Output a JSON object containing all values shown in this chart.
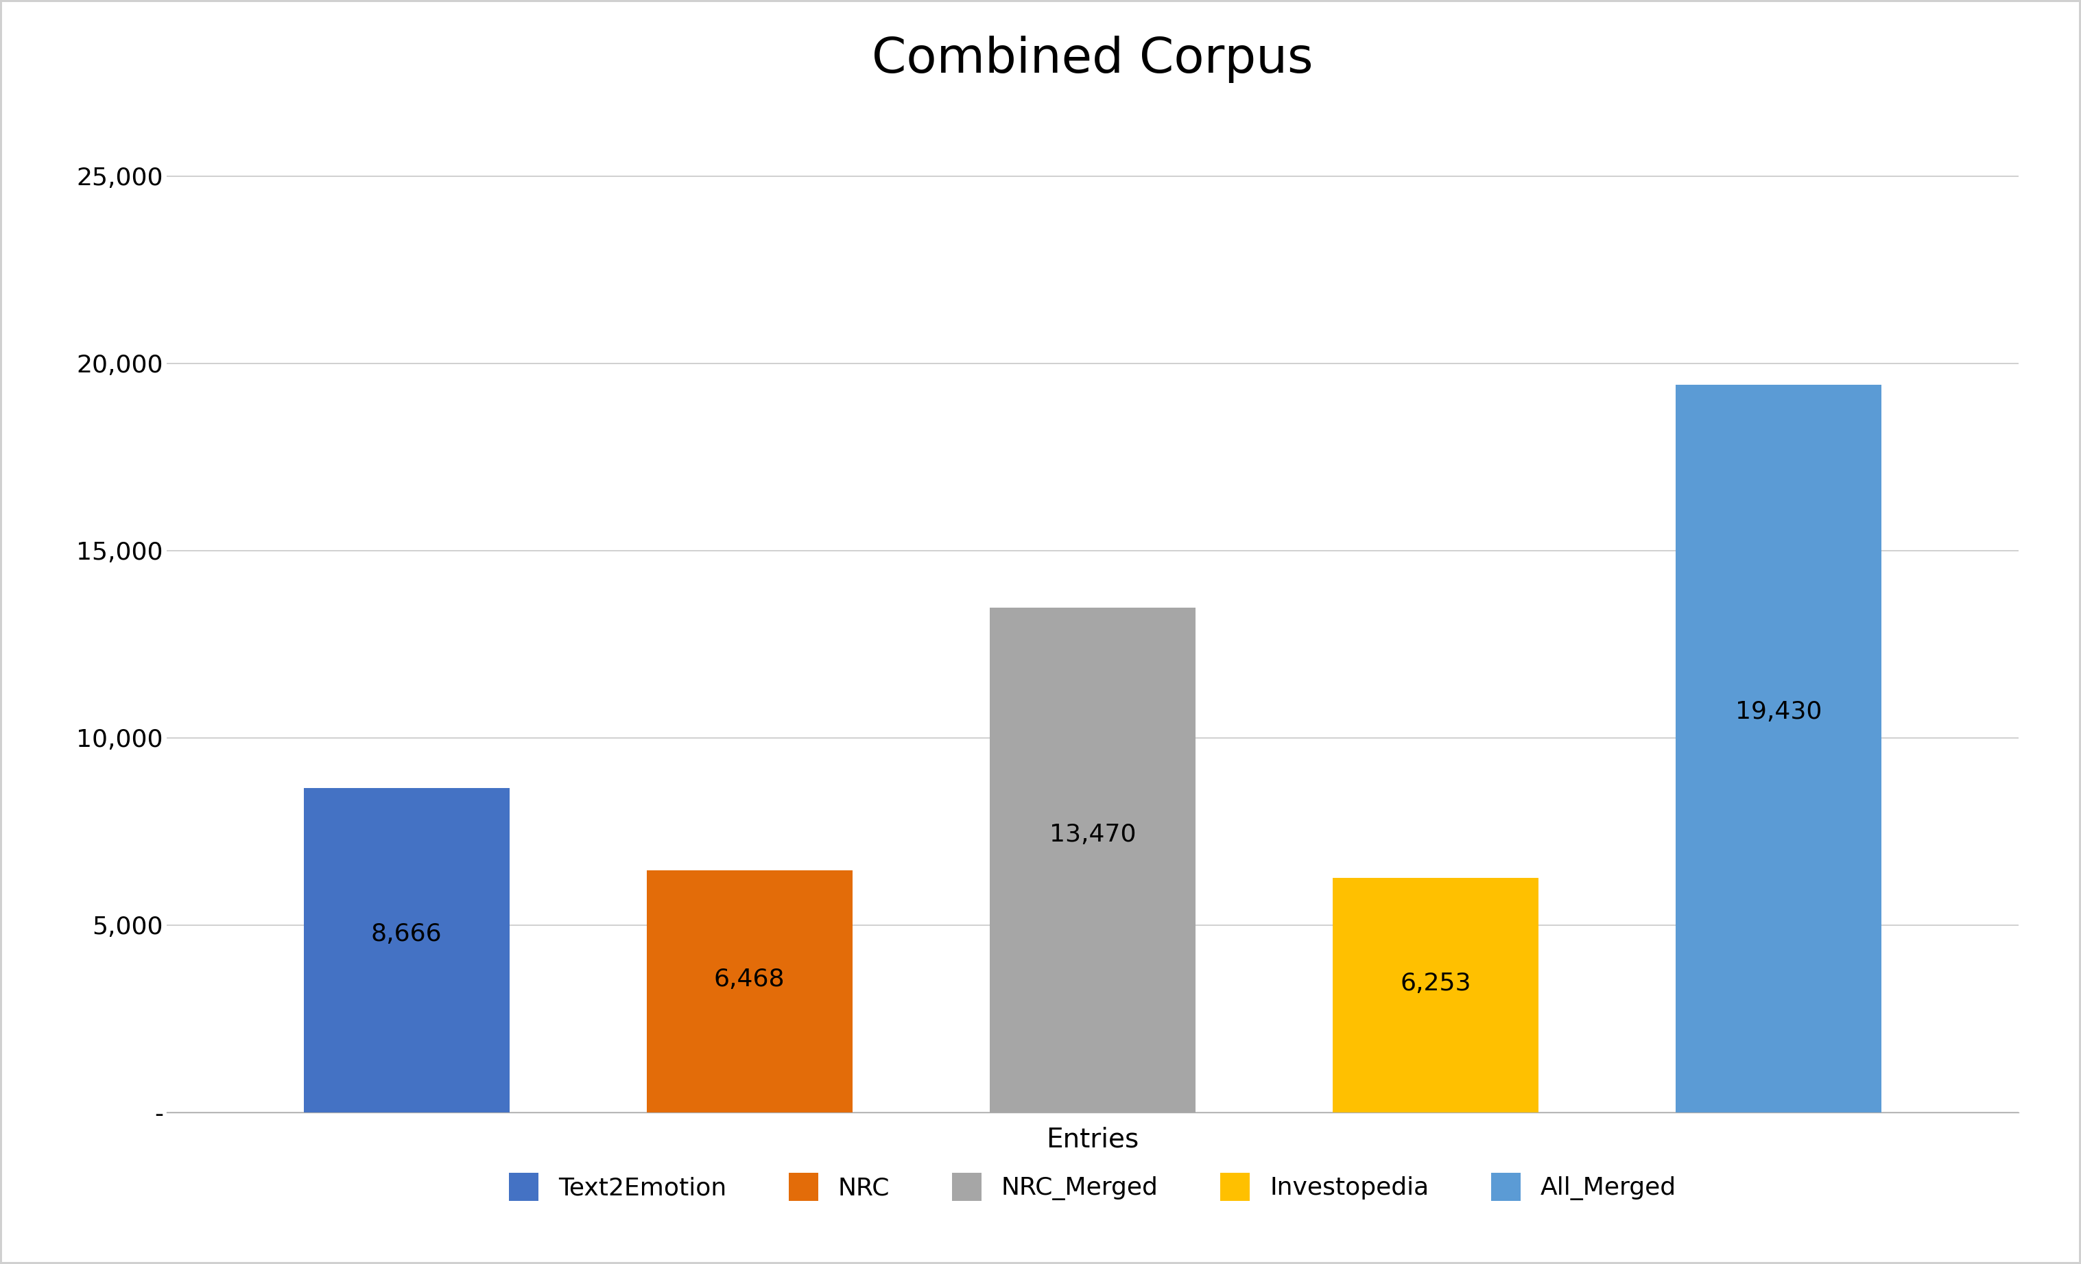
{
  "title": "Combined Corpus",
  "xlabel": "Entries",
  "ylabel": "",
  "categories": [
    "Text2Emotion",
    "NRC",
    "NRC_Merged",
    "Investopedia",
    "All_Merged"
  ],
  "values": [
    8666,
    6468,
    13470,
    6253,
    19430
  ],
  "bar_colors": [
    "#4472C4",
    "#E36C09",
    "#A6A6A6",
    "#FFC000",
    "#5B9BD5"
  ],
  "bar_colors_legend": [
    "#4472C4",
    "#E36C09",
    "#A6A6A6",
    "#FFC000",
    "#5B9BD5"
  ],
  "legend_labels": [
    "Text2Emotion",
    "NRC",
    "NRC_Merged",
    "Investopedia",
    "All_Merged"
  ],
  "ylim": [
    0,
    27000
  ],
  "yticks": [
    0,
    5000,
    10000,
    15000,
    20000,
    25000
  ],
  "ytick_labels": [
    "-",
    "5,000",
    "10,000",
    "15,000",
    "20,000",
    "25,000"
  ],
  "title_fontsize": 52,
  "axis_label_fontsize": 28,
  "tick_fontsize": 26,
  "bar_label_fontsize": 26,
  "legend_fontsize": 26,
  "background_color": "#FFFFFF",
  "frame_color": "#D0D0D0",
  "grid_color": "#C8C8C8",
  "bar_width": 0.6
}
